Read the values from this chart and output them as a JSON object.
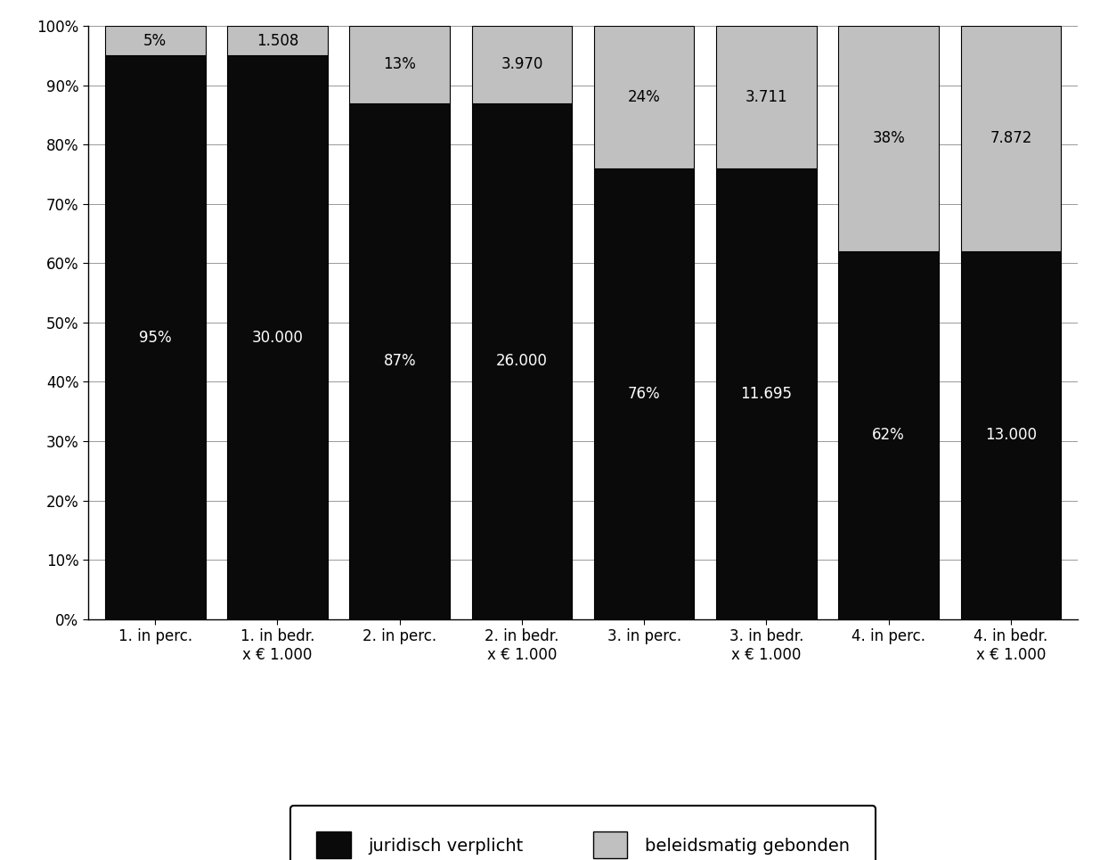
{
  "categories": [
    "1. in perc.",
    "1. in bedr.\nx € 1.000",
    "2. in perc.",
    "2. in bedr.\nx € 1.000",
    "3. in perc.",
    "3. in bedr.\nx € 1.000",
    "4. in perc.",
    "4. in bedr.\nx € 1.000"
  ],
  "juridisch_values": [
    95,
    95,
    87,
    87,
    76,
    76,
    62,
    62
  ],
  "beleidsmatig_values": [
    5,
    5,
    13,
    13,
    24,
    24,
    38,
    38
  ],
  "juridisch_labels": [
    "95%",
    "30.000",
    "87%",
    "26.000",
    "76%",
    "11.695",
    "62%",
    "13.000"
  ],
  "beleidsmatig_labels": [
    "5%",
    "1.508",
    "13%",
    "3.970",
    "24%",
    "3.711",
    "38%",
    "7.872"
  ],
  "bar_color_juridisch": "#0a0a0a",
  "bar_color_beleidsmatig": "#c0c0c0",
  "bar_edge_color": "#000000",
  "background_color": "#ffffff",
  "legend_juridisch": "juridisch verplicht",
  "legend_beleidsmatig": "beleidsmatig gebonden",
  "ylim": [
    0,
    100
  ],
  "yticks": [
    0,
    10,
    20,
    30,
    40,
    50,
    60,
    70,
    80,
    90,
    100
  ],
  "ytick_labels": [
    "0%",
    "10%",
    "20%",
    "30%",
    "40%",
    "50%",
    "60%",
    "70%",
    "80%",
    "90%",
    "100%"
  ],
  "bar_width": 0.82,
  "figsize": [
    12.35,
    9.65
  ],
  "dpi": 100,
  "font_size_labels": 12,
  "font_size_ticks": 12,
  "font_size_legend": 14,
  "grid_color": "#999999",
  "legend_box_color": "#000000",
  "legend_bg": "#ffffff"
}
